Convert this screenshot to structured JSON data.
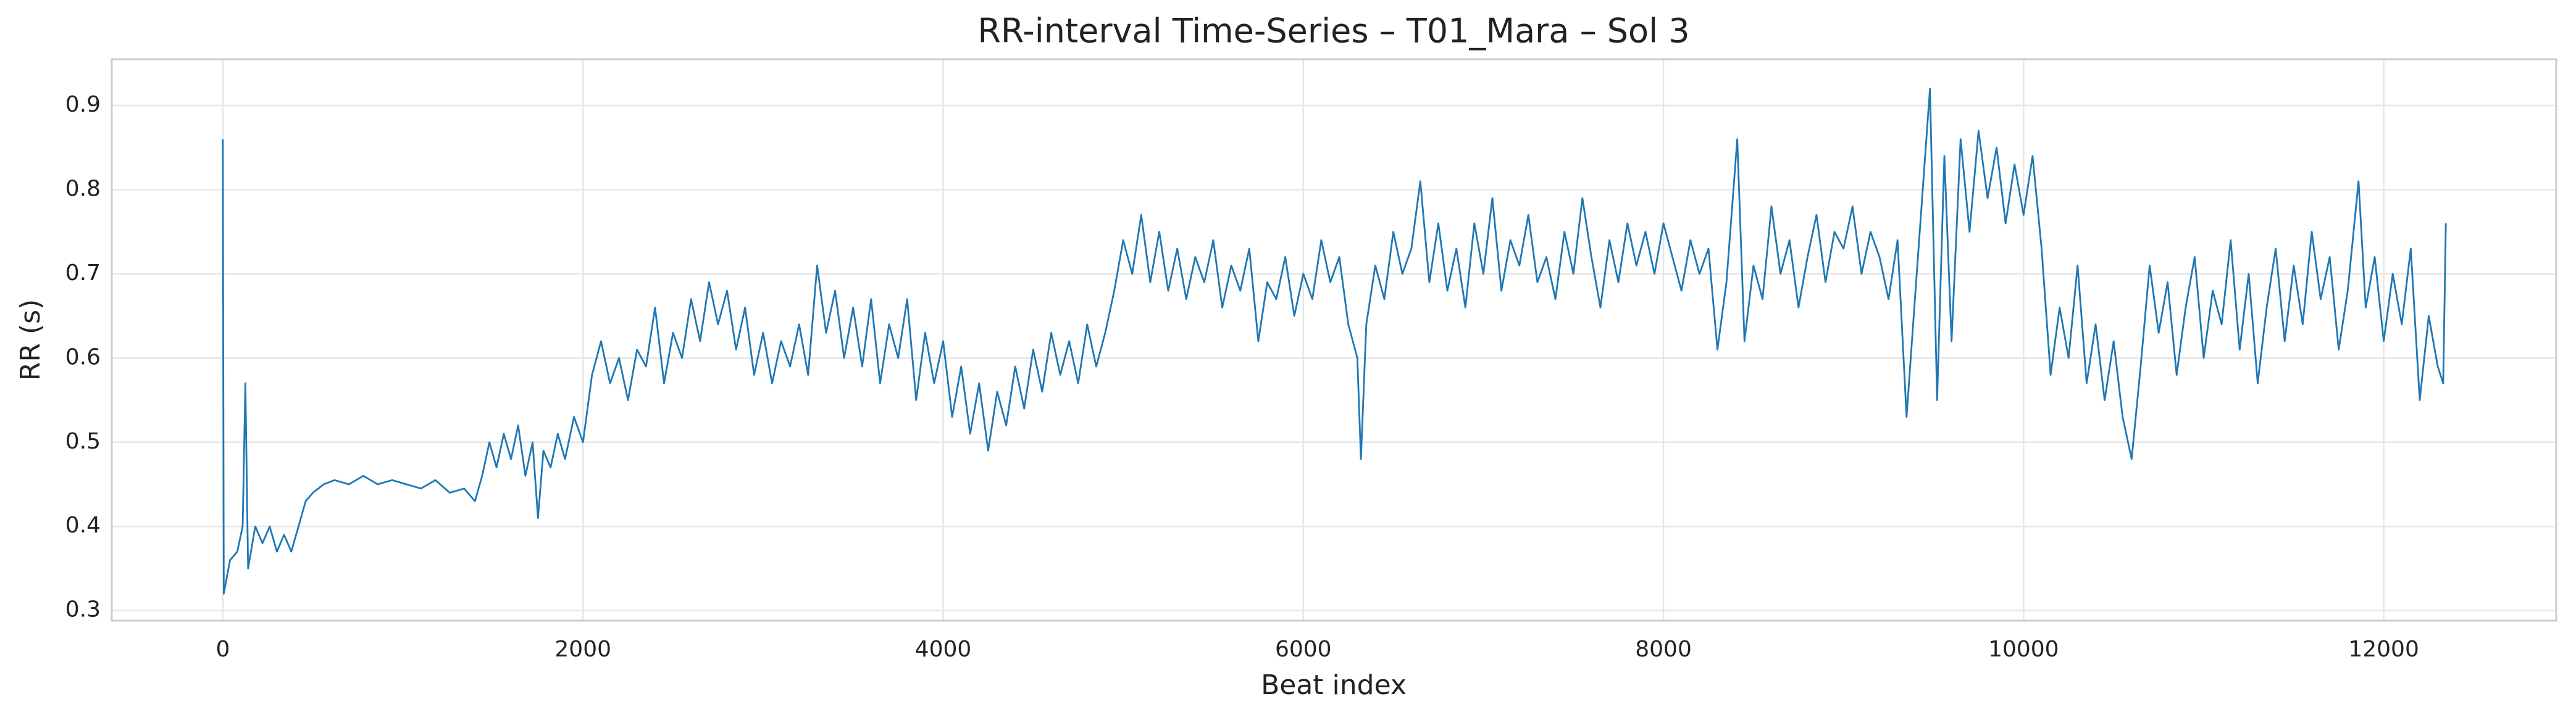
{
  "chart_data": {
    "type": "line",
    "title": "RR-interval Time-Series – T01_Mara – Sol 3",
    "xlabel": "Beat index",
    "ylabel": "RR (s)",
    "xlim": [
      -617,
      12958
    ],
    "ylim": [
      0.288,
      0.955
    ],
    "xticks": [
      0,
      2000,
      4000,
      6000,
      8000,
      10000,
      12000
    ],
    "yticks": [
      0.3,
      0.4,
      0.5,
      0.6,
      0.7,
      0.8,
      0.9
    ],
    "grid": true,
    "series": [
      {
        "color": "#1f77b4",
        "x": [
          0,
          5,
          40,
          80,
          110,
          125,
          140,
          180,
          220,
          260,
          300,
          340,
          380,
          420,
          460,
          500,
          560,
          620,
          700,
          780,
          860,
          940,
          1020,
          1100,
          1180,
          1260,
          1340,
          1400,
          1440,
          1480,
          1520,
          1560,
          1600,
          1640,
          1680,
          1720,
          1750,
          1780,
          1820,
          1860,
          1900,
          1950,
          2000,
          2050,
          2100,
          2150,
          2200,
          2250,
          2300,
          2350,
          2400,
          2450,
          2500,
          2550,
          2600,
          2650,
          2700,
          2750,
          2800,
          2850,
          2900,
          2950,
          3000,
          3050,
          3100,
          3150,
          3200,
          3250,
          3300,
          3350,
          3400,
          3450,
          3500,
          3550,
          3600,
          3650,
          3700,
          3750,
          3800,
          3850,
          3900,
          3950,
          4000,
          4050,
          4100,
          4150,
          4200,
          4250,
          4300,
          4350,
          4400,
          4450,
          4500,
          4550,
          4600,
          4650,
          4700,
          4750,
          4800,
          4850,
          4900,
          4950,
          5000,
          5050,
          5100,
          5150,
          5200,
          5250,
          5300,
          5350,
          5400,
          5450,
          5500,
          5550,
          5600,
          5650,
          5700,
          5750,
          5800,
          5850,
          5900,
          5950,
          6000,
          6050,
          6100,
          6150,
          6200,
          6250,
          6300,
          6320,
          6350,
          6400,
          6450,
          6500,
          6550,
          6600,
          6650,
          6700,
          6750,
          6800,
          6850,
          6900,
          6950,
          7000,
          7050,
          7100,
          7150,
          7200,
          7250,
          7300,
          7350,
          7400,
          7450,
          7500,
          7550,
          7600,
          7650,
          7700,
          7750,
          7800,
          7850,
          7900,
          7950,
          8000,
          8050,
          8100,
          8150,
          8200,
          8250,
          8300,
          8350,
          8410,
          8450,
          8500,
          8550,
          8600,
          8650,
          8700,
          8750,
          8800,
          8850,
          8900,
          8950,
          9000,
          9050,
          9100,
          9150,
          9200,
          9250,
          9300,
          9350,
          9400,
          9440,
          9480,
          9520,
          9560,
          9600,
          9650,
          9700,
          9750,
          9800,
          9850,
          9900,
          9950,
          10000,
          10050,
          10100,
          10150,
          10200,
          10250,
          10300,
          10350,
          10400,
          10450,
          10500,
          10550,
          10600,
          10650,
          10700,
          10750,
          10800,
          10850,
          10900,
          10950,
          11000,
          11050,
          11100,
          11150,
          11200,
          11250,
          11300,
          11350,
          11400,
          11450,
          11500,
          11550,
          11600,
          11650,
          11700,
          11750,
          11800,
          11860,
          11900,
          11950,
          12000,
          12050,
          12100,
          12150,
          12200,
          12250,
          12300,
          12330,
          12345
        ],
        "values": [
          0.86,
          0.32,
          0.36,
          0.37,
          0.4,
          0.57,
          0.35,
          0.4,
          0.38,
          0.4,
          0.37,
          0.39,
          0.37,
          0.4,
          0.43,
          0.44,
          0.45,
          0.455,
          0.45,
          0.46,
          0.45,
          0.455,
          0.45,
          0.445,
          0.455,
          0.44,
          0.445,
          0.43,
          0.46,
          0.5,
          0.47,
          0.51,
          0.48,
          0.52,
          0.46,
          0.5,
          0.41,
          0.49,
          0.47,
          0.51,
          0.48,
          0.53,
          0.5,
          0.58,
          0.62,
          0.57,
          0.6,
          0.55,
          0.61,
          0.59,
          0.66,
          0.57,
          0.63,
          0.6,
          0.67,
          0.62,
          0.69,
          0.64,
          0.68,
          0.61,
          0.66,
          0.58,
          0.63,
          0.57,
          0.62,
          0.59,
          0.64,
          0.58,
          0.71,
          0.63,
          0.68,
          0.6,
          0.66,
          0.59,
          0.67,
          0.57,
          0.64,
          0.6,
          0.67,
          0.55,
          0.63,
          0.57,
          0.62,
          0.53,
          0.59,
          0.51,
          0.57,
          0.49,
          0.56,
          0.52,
          0.59,
          0.54,
          0.61,
          0.56,
          0.63,
          0.58,
          0.62,
          0.57,
          0.64,
          0.59,
          0.63,
          0.68,
          0.74,
          0.7,
          0.77,
          0.69,
          0.75,
          0.68,
          0.73,
          0.67,
          0.72,
          0.69,
          0.74,
          0.66,
          0.71,
          0.68,
          0.73,
          0.62,
          0.69,
          0.67,
          0.72,
          0.65,
          0.7,
          0.67,
          0.74,
          0.69,
          0.72,
          0.64,
          0.6,
          0.48,
          0.64,
          0.71,
          0.67,
          0.75,
          0.7,
          0.73,
          0.81,
          0.69,
          0.76,
          0.68,
          0.73,
          0.66,
          0.76,
          0.7,
          0.79,
          0.68,
          0.74,
          0.71,
          0.77,
          0.69,
          0.72,
          0.67,
          0.75,
          0.7,
          0.79,
          0.72,
          0.66,
          0.74,
          0.69,
          0.76,
          0.71,
          0.75,
          0.7,
          0.76,
          0.72,
          0.68,
          0.74,
          0.7,
          0.73,
          0.61,
          0.69,
          0.86,
          0.62,
          0.71,
          0.67,
          0.78,
          0.7,
          0.74,
          0.66,
          0.72,
          0.77,
          0.69,
          0.75,
          0.73,
          0.78,
          0.7,
          0.75,
          0.72,
          0.67,
          0.74,
          0.53,
          0.68,
          0.8,
          0.92,
          0.55,
          0.84,
          0.62,
          0.86,
          0.75,
          0.87,
          0.79,
          0.85,
          0.76,
          0.83,
          0.77,
          0.84,
          0.73,
          0.58,
          0.66,
          0.6,
          0.71,
          0.57,
          0.64,
          0.55,
          0.62,
          0.53,
          0.48,
          0.59,
          0.71,
          0.63,
          0.69,
          0.58,
          0.66,
          0.72,
          0.6,
          0.68,
          0.64,
          0.74,
          0.61,
          0.7,
          0.57,
          0.66,
          0.73,
          0.62,
          0.71,
          0.64,
          0.75,
          0.67,
          0.72,
          0.61,
          0.68,
          0.81,
          0.66,
          0.72,
          0.62,
          0.7,
          0.64,
          0.73,
          0.55,
          0.65,
          0.59,
          0.57,
          0.76
        ]
      }
    ]
  }
}
